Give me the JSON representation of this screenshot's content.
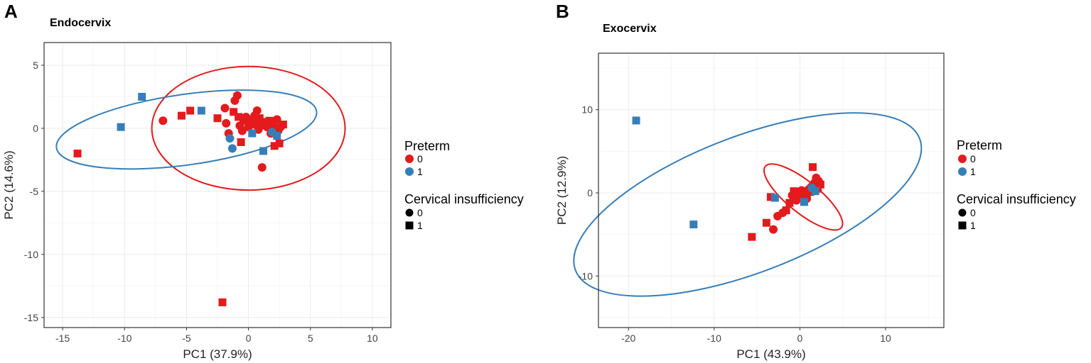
{
  "colors": {
    "preterm_0": "#E41A1C",
    "preterm_1": "#377EB8"
  },
  "panels": [
    {
      "letter": "A",
      "title": "Endocervix"
    },
    {
      "letter": "B",
      "title": "Exocervix"
    }
  ],
  "legend": {
    "preterm_title": "Preterm",
    "preterm_items": [
      "0",
      "1"
    ],
    "ci_title": "Cervical insufficiency",
    "ci_items": [
      "0",
      "1"
    ]
  },
  "chart_data": [
    {
      "type": "scatter",
      "title": "Endocervix",
      "xlabel": "PC1 (37.9%)",
      "ylabel": "PC2 (14.6%)",
      "xlim": [
        -16.5,
        11.5
      ],
      "ylim": [
        -15.8,
        6.8
      ],
      "xticks": [
        -15,
        -10,
        -5,
        0,
        5,
        10
      ],
      "yticks": [
        5,
        0,
        -5,
        -10,
        -15
      ],
      "ellipses": [
        {
          "preterm": 0,
          "cx": 0.0,
          "cy": 0.0,
          "a": 7.8,
          "b": 4.9,
          "angle": 0
        },
        {
          "preterm": 1,
          "cx": -5.0,
          "cy": -0.1,
          "a": 10.6,
          "b": 2.8,
          "angle": -8
        }
      ],
      "points": [
        {
          "x": -13.8,
          "y": -2.0,
          "preterm": 0,
          "ci": 1
        },
        {
          "x": -6.9,
          "y": 0.6,
          "preterm": 0,
          "ci": 0
        },
        {
          "x": -5.4,
          "y": 1.0,
          "preterm": 0,
          "ci": 1
        },
        {
          "x": -4.7,
          "y": 1.4,
          "preterm": 0,
          "ci": 1
        },
        {
          "x": -2.5,
          "y": 0.8,
          "preterm": 0,
          "ci": 1
        },
        {
          "x": -2.1,
          "y": -13.8,
          "preterm": 0,
          "ci": 1
        },
        {
          "x": -1.9,
          "y": 1.6,
          "preterm": 0,
          "ci": 0
        },
        {
          "x": -1.8,
          "y": 0.4,
          "preterm": 0,
          "ci": 0
        },
        {
          "x": -1.6,
          "y": -0.4,
          "preterm": 0,
          "ci": 0
        },
        {
          "x": -1.2,
          "y": 1.3,
          "preterm": 0,
          "ci": 1
        },
        {
          "x": -1.1,
          "y": 2.2,
          "preterm": 0,
          "ci": 0
        },
        {
          "x": -0.9,
          "y": 2.6,
          "preterm": 0,
          "ci": 0
        },
        {
          "x": -0.8,
          "y": 0.9,
          "preterm": 0,
          "ci": 1
        },
        {
          "x": -0.7,
          "y": 0.2,
          "preterm": 0,
          "ci": 0
        },
        {
          "x": -0.6,
          "y": -1.1,
          "preterm": 0,
          "ci": 1
        },
        {
          "x": -0.5,
          "y": -0.2,
          "preterm": 0,
          "ci": 0
        },
        {
          "x": -0.4,
          "y": 0.6,
          "preterm": 0,
          "ci": 1
        },
        {
          "x": -0.2,
          "y": 0.9,
          "preterm": 0,
          "ci": 0
        },
        {
          "x": 0.0,
          "y": 0.1,
          "preterm": 0,
          "ci": 0
        },
        {
          "x": 0.2,
          "y": 0.4,
          "preterm": 0,
          "ci": 1
        },
        {
          "x": 0.3,
          "y": 0.7,
          "preterm": 0,
          "ci": 0
        },
        {
          "x": 0.5,
          "y": 1.0,
          "preterm": 0,
          "ci": 0
        },
        {
          "x": 0.6,
          "y": 0.3,
          "preterm": 0,
          "ci": 1
        },
        {
          "x": 0.7,
          "y": 1.4,
          "preterm": 0,
          "ci": 0
        },
        {
          "x": 0.8,
          "y": -0.1,
          "preterm": 0,
          "ci": 0
        },
        {
          "x": 0.9,
          "y": 0.8,
          "preterm": 0,
          "ci": 1
        },
        {
          "x": 1.0,
          "y": 0.2,
          "preterm": 0,
          "ci": 0
        },
        {
          "x": 1.1,
          "y": -3.1,
          "preterm": 0,
          "ci": 0
        },
        {
          "x": 1.3,
          "y": 0.5,
          "preterm": 0,
          "ci": 1
        },
        {
          "x": 1.5,
          "y": 0.1,
          "preterm": 0,
          "ci": 0
        },
        {
          "x": 1.7,
          "y": 0.6,
          "preterm": 0,
          "ci": 1
        },
        {
          "x": 1.8,
          "y": -0.4,
          "preterm": 0,
          "ci": 0
        },
        {
          "x": 2.0,
          "y": 0.3,
          "preterm": 0,
          "ci": 0
        },
        {
          "x": 2.1,
          "y": -1.4,
          "preterm": 0,
          "ci": 1
        },
        {
          "x": 2.2,
          "y": 0.0,
          "preterm": 0,
          "ci": 1
        },
        {
          "x": 2.3,
          "y": 0.7,
          "preterm": 0,
          "ci": 0
        },
        {
          "x": 2.4,
          "y": -0.2,
          "preterm": 0,
          "ci": 0
        },
        {
          "x": 2.5,
          "y": -1.2,
          "preterm": 0,
          "ci": 1
        },
        {
          "x": 2.6,
          "y": 0.1,
          "preterm": 0,
          "ci": 0
        },
        {
          "x": 2.8,
          "y": 0.3,
          "preterm": 0,
          "ci": 1
        },
        {
          "x": -10.3,
          "y": 0.1,
          "preterm": 1,
          "ci": 1
        },
        {
          "x": -8.6,
          "y": 2.5,
          "preterm": 1,
          "ci": 1
        },
        {
          "x": -3.8,
          "y": 1.4,
          "preterm": 1,
          "ci": 1
        },
        {
          "x": -1.5,
          "y": -0.8,
          "preterm": 1,
          "ci": 0
        },
        {
          "x": -1.3,
          "y": -1.6,
          "preterm": 1,
          "ci": 0
        },
        {
          "x": 0.3,
          "y": -0.4,
          "preterm": 1,
          "ci": 1
        },
        {
          "x": 1.2,
          "y": -1.8,
          "preterm": 1,
          "ci": 1
        },
        {
          "x": 1.9,
          "y": -0.3,
          "preterm": 1,
          "ci": 0
        },
        {
          "x": 2.3,
          "y": -0.6,
          "preterm": 1,
          "ci": 1
        }
      ]
    },
    {
      "type": "scatter",
      "title": "Exocervix",
      "xlabel": "PC1 (43.9%)",
      "ylabel": "PC2 (12.9%)",
      "xlim": [
        -23.5,
        16.8
      ],
      "ylim": [
        -16.2,
        16.8
      ],
      "xticks": [
        -20,
        -10,
        0,
        10
      ],
      "yticks": [
        10,
        0,
        -10
      ],
      "ellipses": [
        {
          "preterm": 1,
          "cx": -6.1,
          "cy": -1.4,
          "a": 21.5,
          "b": 8.2,
          "angle": -21
        },
        {
          "preterm": 0,
          "cx": 0.4,
          "cy": -0.5,
          "a": 5.7,
          "b": 1.9,
          "angle": 39
        }
      ],
      "points": [
        {
          "x": -5.6,
          "y": -5.3,
          "preterm": 0,
          "ci": 1
        },
        {
          "x": -3.9,
          "y": -3.6,
          "preterm": 0,
          "ci": 1
        },
        {
          "x": -3.4,
          "y": -0.5,
          "preterm": 0,
          "ci": 1
        },
        {
          "x": -3.1,
          "y": -4.4,
          "preterm": 0,
          "ci": 0
        },
        {
          "x": -2.6,
          "y": -2.8,
          "preterm": 0,
          "ci": 0
        },
        {
          "x": -2.0,
          "y": -2.4,
          "preterm": 0,
          "ci": 0
        },
        {
          "x": -1.6,
          "y": -2.1,
          "preterm": 0,
          "ci": 1
        },
        {
          "x": -1.2,
          "y": -1.2,
          "preterm": 0,
          "ci": 1
        },
        {
          "x": -0.9,
          "y": -0.3,
          "preterm": 0,
          "ci": 0
        },
        {
          "x": -0.7,
          "y": 0.2,
          "preterm": 0,
          "ci": 1
        },
        {
          "x": -0.4,
          "y": -0.9,
          "preterm": 0,
          "ci": 0
        },
        {
          "x": -0.2,
          "y": 0.1,
          "preterm": 0,
          "ci": 0
        },
        {
          "x": 0.0,
          "y": -0.4,
          "preterm": 0,
          "ci": 1
        },
        {
          "x": 0.2,
          "y": 0.3,
          "preterm": 0,
          "ci": 0
        },
        {
          "x": 0.4,
          "y": -0.2,
          "preterm": 0,
          "ci": 0
        },
        {
          "x": 0.6,
          "y": 0.0,
          "preterm": 0,
          "ci": 1
        },
        {
          "x": 0.8,
          "y": -0.7,
          "preterm": 0,
          "ci": 0
        },
        {
          "x": 1.0,
          "y": 0.4,
          "preterm": 0,
          "ci": 0
        },
        {
          "x": 1.2,
          "y": 0.1,
          "preterm": 0,
          "ci": 1
        },
        {
          "x": 1.3,
          "y": 0.7,
          "preterm": 0,
          "ci": 0
        },
        {
          "x": 1.5,
          "y": 3.1,
          "preterm": 0,
          "ci": 1
        },
        {
          "x": 1.7,
          "y": 1.2,
          "preterm": 0,
          "ci": 0
        },
        {
          "x": 1.9,
          "y": 1.8,
          "preterm": 0,
          "ci": 0
        },
        {
          "x": 2.1,
          "y": 0.5,
          "preterm": 0,
          "ci": 1
        },
        {
          "x": 2.4,
          "y": 1.0,
          "preterm": 0,
          "ci": 1
        },
        {
          "x": 2.2,
          "y": 1.4,
          "preterm": 0,
          "ci": 0
        },
        {
          "x": 0.9,
          "y": -0.1,
          "preterm": 0,
          "ci": 0
        },
        {
          "x": -19.1,
          "y": 8.7,
          "preterm": 1,
          "ci": 1
        },
        {
          "x": -12.4,
          "y": -3.8,
          "preterm": 1,
          "ci": 1
        },
        {
          "x": -2.9,
          "y": -0.6,
          "preterm": 1,
          "ci": 1
        },
        {
          "x": 0.5,
          "y": -1.1,
          "preterm": 1,
          "ci": 1
        },
        {
          "x": 1.4,
          "y": 0.6,
          "preterm": 1,
          "ci": 0
        },
        {
          "x": 1.8,
          "y": 0.2,
          "preterm": 1,
          "ci": 1
        }
      ]
    }
  ]
}
